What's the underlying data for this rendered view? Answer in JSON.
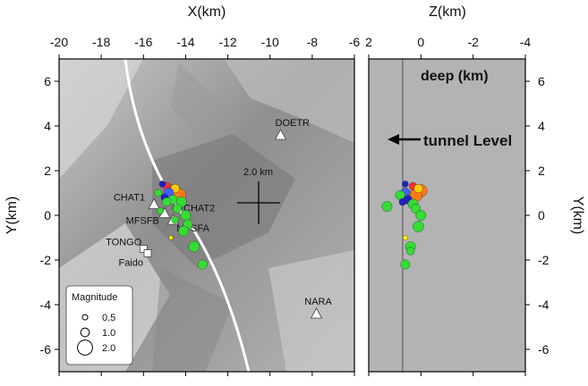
{
  "chart_data": [
    {
      "type": "scatter",
      "panel": "map",
      "xlabel": "X(km)",
      "ylabel": "Y(km)",
      "xlim": [
        -20,
        -6
      ],
      "ylim": [
        -7,
        7
      ],
      "xticks": [
        -20,
        -18,
        -16,
        -14,
        -12,
        -10,
        -8,
        -6
      ],
      "yticks": [
        -6,
        -4,
        -2,
        0,
        2,
        4,
        6
      ],
      "scale_bar_label": "2.0 km",
      "stations": [
        {
          "name": "DOETR",
          "x": -9.5,
          "y": 3.6,
          "symbol": "triangle"
        },
        {
          "name": "CHAT1",
          "x": -15.5,
          "y": 0.5,
          "symbol": "triangle"
        },
        {
          "name": "CHAT2",
          "x": -14.4,
          "y": 0.5,
          "symbol": "triangle"
        },
        {
          "name": "MFSFB",
          "x": -15.0,
          "y": 0.1,
          "symbol": "triangle"
        },
        {
          "name": "MFSFA",
          "x": -14.6,
          "y": -0.2,
          "symbol": "triangle"
        },
        {
          "name": "TONGO",
          "x": -16.0,
          "y": -1.5,
          "symbol": "square"
        },
        {
          "name": "Faido",
          "x": -15.8,
          "y": -1.7,
          "symbol": "square"
        },
        {
          "name": "NARA",
          "x": -7.8,
          "y": -4.4,
          "symbol": "triangle"
        }
      ],
      "events": [
        {
          "x": -14.7,
          "y": 1.1,
          "mag": 1.3,
          "color": "#ff7a1a"
        },
        {
          "x": -14.3,
          "y": 0.9,
          "mag": 1.4,
          "color": "#ff7a1a"
        },
        {
          "x": -14.9,
          "y": 1.3,
          "mag": 0.7,
          "color": "#ff3030"
        },
        {
          "x": -14.5,
          "y": 1.2,
          "mag": 0.8,
          "color": "#ffcc00"
        },
        {
          "x": -14.8,
          "y": 1.0,
          "mag": 1.0,
          "color": "#4060ff"
        },
        {
          "x": -15.0,
          "y": 0.8,
          "mag": 0.6,
          "color": "#2020c0"
        },
        {
          "x": -15.1,
          "y": 1.4,
          "mag": 0.5,
          "color": "#2020c0"
        },
        {
          "x": -14.6,
          "y": 0.7,
          "mag": 0.9,
          "color": "#33dd33"
        },
        {
          "x": -14.2,
          "y": 0.6,
          "mag": 1.0,
          "color": "#33dd33"
        },
        {
          "x": -14.9,
          "y": 0.6,
          "mag": 0.8,
          "color": "#33dd33"
        },
        {
          "x": -15.3,
          "y": 1.0,
          "mag": 0.6,
          "color": "#33dd33"
        },
        {
          "x": -14.4,
          "y": 0.3,
          "mag": 0.8,
          "color": "#33dd33"
        },
        {
          "x": -14.0,
          "y": 0.0,
          "mag": 1.0,
          "color": "#33dd33"
        },
        {
          "x": -13.9,
          "y": -0.4,
          "mag": 0.9,
          "color": "#33dd33"
        },
        {
          "x": -14.1,
          "y": -0.7,
          "mag": 1.0,
          "color": "#33dd33"
        },
        {
          "x": -13.6,
          "y": -1.4,
          "mag": 1.1,
          "color": "#33dd33"
        },
        {
          "x": -13.2,
          "y": -2.2,
          "mag": 0.9,
          "color": "#33dd33"
        },
        {
          "x": -14.5,
          "y": -0.2,
          "mag": 0.6,
          "color": "#33dd33"
        },
        {
          "x": -14.7,
          "y": -1.0,
          "mag": 0.2,
          "color": "#ffee00"
        },
        {
          "x": -15.2,
          "y": 0.2,
          "mag": 0.5,
          "color": "#33dd33"
        }
      ]
    },
    {
      "type": "scatter",
      "panel": "depth",
      "xlabel": "Z(km)",
      "ylabel": "Y(km)",
      "xlim": [
        2,
        -4
      ],
      "ylim": [
        -7,
        7
      ],
      "xticks": [
        2,
        0,
        -2,
        -4
      ],
      "yticks": [
        -6,
        -4,
        -2,
        0,
        2,
        4,
        6
      ],
      "title": "deep (km)",
      "annotation": "tunnel Level",
      "tunnel_z": 0.7,
      "events": [
        {
          "z": 0.0,
          "y": 1.1,
          "mag": 1.3,
          "color": "#ff7a1a"
        },
        {
          "z": 0.2,
          "y": 0.9,
          "mag": 1.4,
          "color": "#ff7a1a"
        },
        {
          "z": 0.3,
          "y": 1.3,
          "mag": 0.7,
          "color": "#ff3030"
        },
        {
          "z": 0.1,
          "y": 1.2,
          "mag": 0.8,
          "color": "#ffcc00"
        },
        {
          "z": 0.6,
          "y": 1.0,
          "mag": 1.0,
          "color": "#4060ff"
        },
        {
          "z": 0.5,
          "y": 0.7,
          "mag": 0.8,
          "color": "#2020c0"
        },
        {
          "z": 0.6,
          "y": 1.4,
          "mag": 0.5,
          "color": "#2020c0"
        },
        {
          "z": 0.8,
          "y": 0.9,
          "mag": 0.9,
          "color": "#33dd33"
        },
        {
          "z": 0.3,
          "y": 0.5,
          "mag": 1.0,
          "color": "#33dd33"
        },
        {
          "z": 0.2,
          "y": 0.3,
          "mag": 0.9,
          "color": "#33dd33"
        },
        {
          "z": 1.3,
          "y": 0.4,
          "mag": 1.0,
          "color": "#33dd33"
        },
        {
          "z": 0.0,
          "y": 0.0,
          "mag": 1.0,
          "color": "#33dd33"
        },
        {
          "z": 0.1,
          "y": -0.5,
          "mag": 1.1,
          "color": "#33dd33"
        },
        {
          "z": 0.6,
          "y": -1.0,
          "mag": 0.3,
          "color": "#ffee00"
        },
        {
          "z": 0.4,
          "y": -1.4,
          "mag": 1.0,
          "color": "#33dd33"
        },
        {
          "z": 0.4,
          "y": -1.6,
          "mag": 0.7,
          "color": "#33dd33"
        },
        {
          "z": 0.6,
          "y": -2.2,
          "mag": 0.9,
          "color": "#33dd33"
        },
        {
          "z": 0.7,
          "y": 0.6,
          "mag": 0.6,
          "color": "#2020c0"
        }
      ]
    }
  ],
  "legend": {
    "title": "Magnitude",
    "items": [
      {
        "label": "0.5",
        "mag": 0.5
      },
      {
        "label": "1.0",
        "mag": 1.0
      },
      {
        "label": "2.0",
        "mag": 2.0
      }
    ]
  }
}
